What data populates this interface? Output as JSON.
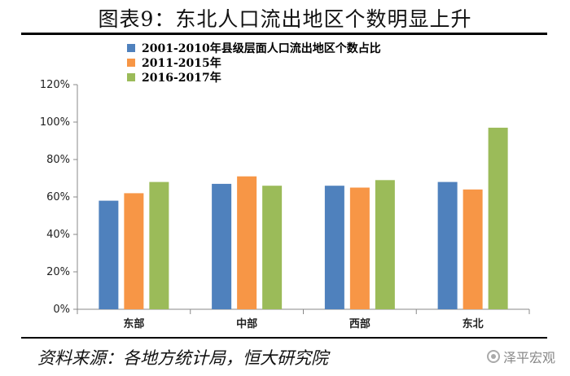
{
  "title": "图表9：东北人口流出地区个数明显上升",
  "source": "资料来源：各地方统计局，恒大研究院",
  "watermark": "泽平宏观",
  "chart_data": {
    "type": "bar",
    "categories": [
      "东部",
      "中部",
      "西部",
      "东北"
    ],
    "series": [
      {
        "name": "2001-2010年县级层面人口流出地区个数占比",
        "color": "#4F81BD",
        "values": [
          58,
          67,
          66,
          68
        ]
      },
      {
        "name": "2011-2015年",
        "color": "#F79646",
        "values": [
          62,
          71,
          65,
          64
        ]
      },
      {
        "name": "2016-2017年",
        "color": "#9BBB59",
        "values": [
          68,
          66,
          69,
          97
        ]
      }
    ],
    "yticks": [
      "0%",
      "20%",
      "40%",
      "60%",
      "80%",
      "100%",
      "120%"
    ],
    "ylim": [
      0,
      120
    ],
    "grid": false,
    "legend_position": "top-left"
  }
}
